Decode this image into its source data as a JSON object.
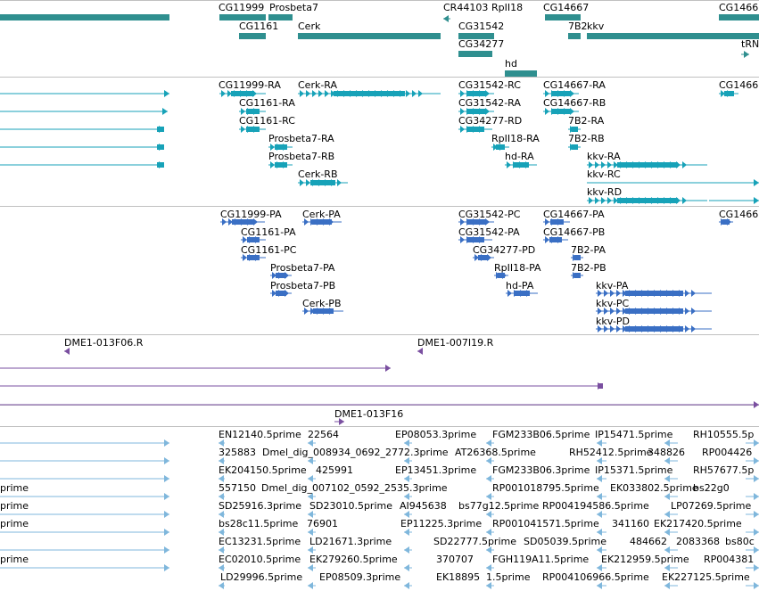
{
  "colors": {
    "gene": "#2f8f8f",
    "transcript": "#17a2b8",
    "protein": "#3a6fc4",
    "clone": "#7a4fa0",
    "est": "#7fb7dc",
    "separator": "#c0c0c0"
  },
  "tracks": {
    "genes": {
      "labels": [
        "CG11999",
        "Prosbeta7",
        "CR44103",
        "RpII18",
        "CG14667",
        "CG1466",
        "CG1161",
        "Cerk",
        "CG31542",
        "7B2",
        "kkv",
        "CG34277",
        "tRN",
        "hd"
      ]
    },
    "transcripts": {
      "labels": [
        "CG11999-RA",
        "Cerk-RA",
        "CG31542-RC",
        "CG14667-RA",
        "CG1466",
        "CG1161-RA",
        "CG31542-RA",
        "CG14667-RB",
        "CG1161-RC",
        "CG34277-RD",
        "7B2-RA",
        "Prosbeta7-RA",
        "RpII18-RA",
        "7B2-RB",
        "Prosbeta7-RB",
        "hd-RA",
        "kkv-RA",
        "Cerk-RB",
        "kkv-RC",
        "kkv-RD"
      ]
    },
    "proteins": {
      "labels": [
        "CG11999-PA",
        "Cerk-PA",
        "CG31542-PC",
        "CG14667-PA",
        "CG1466",
        "CG1161-PA",
        "CG31542-PA",
        "CG14667-PB",
        "CG1161-PC",
        "CG34277-PD",
        "7B2-PA",
        "Prosbeta7-PA",
        "RpII18-PA",
        "7B2-PB",
        "Prosbeta7-PB",
        "hd-PA",
        "kkv-PA",
        "Cerk-PB",
        "kkv-PC",
        "kkv-PD"
      ]
    },
    "clones": {
      "labels": [
        "DME1-013F06.R",
        "DME1-007I19.R",
        "DME1-013F16"
      ]
    },
    "ests": {
      "labels": [
        "EN12140.5prime",
        "22564",
        "EP08053.3prime",
        "FGM233B06.5prime",
        "IP15471.5prime",
        "RH10555.5p",
        "325883",
        "Dmel_dig_008934_0692_2772.3prime",
        "AT26368.5prime",
        "RH52412.5prime",
        "348826",
        "RP004426",
        "EK204150.5prime",
        "425991",
        "EP13451.3prime",
        "FGM233B06.3prime",
        "IP15371.5prime",
        "RH57677.5p",
        "prime",
        "557150",
        "Dmel_dig_007102_0592_2535.3prime",
        "RP001018795.5prime",
        "EK033802.5prime",
        "bs22g0",
        "prime",
        "SD25916.3prime",
        "SD23010.5prime",
        "AI945638",
        "bs77g12.5prime",
        "RP004194586.5prime",
        "LP07269.5prime",
        "prime",
        "bs28c11.5prime",
        "76901",
        "EP11225.3prime",
        "RP001041571.5prime",
        "341160",
        "EK217420.5prime",
        "EC13231.5prime",
        "LD21671.3prime",
        "SD22777.5prime",
        "SD05039.5prime",
        "484662",
        "2083368",
        "bs80c",
        "prime",
        "EC02010.5prime",
        "EK279260.5prime",
        "370707",
        "FGH119A11.5prime",
        "EK212959.5prime",
        "RP004381",
        "LD29996.5prime",
        "EP08509.3prime",
        "EK18895",
        "1.5prime",
        "RP004106966.5prime",
        "EK227125.5prime"
      ]
    }
  }
}
